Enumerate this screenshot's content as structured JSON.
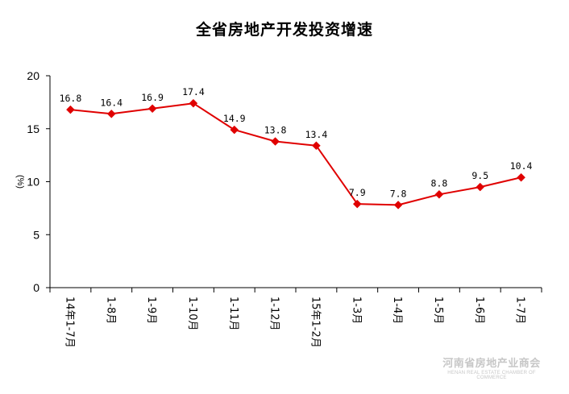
{
  "chart_data": {
    "type": "line",
    "title": "全省房地产开发投资增速",
    "ylabel": "(%)",
    "ylim": [
      0,
      20
    ],
    "yticks": [
      "0",
      "5",
      "10",
      "15",
      "20"
    ],
    "categories": [
      "14年1-7月",
      "1-8月",
      "1-9月",
      "1-10月",
      "1-11月",
      "1-12月",
      "15年1-2月",
      "1-3月",
      "1-4月",
      "1-5月",
      "1-6月",
      "1-7月"
    ],
    "values": [
      16.8,
      16.4,
      16.9,
      17.4,
      14.9,
      13.8,
      13.4,
      7.9,
      7.8,
      8.8,
      9.5,
      10.4
    ],
    "data_labels": [
      "16.8",
      "16.4",
      "16.9",
      "17.4",
      "14.9",
      "13.8",
      "13.4",
      "7.9",
      "7.8",
      "8.8",
      "9.5",
      "10.4"
    ],
    "grid": false,
    "legend": "none",
    "colors": {
      "line": "#e00000",
      "marker": "#e00000",
      "axis": "#000000"
    }
  },
  "watermark": {
    "cn": "河南省房地产业商会",
    "en": "HENAN REAL ESTATE CHAMBER OF COMMERCE"
  }
}
